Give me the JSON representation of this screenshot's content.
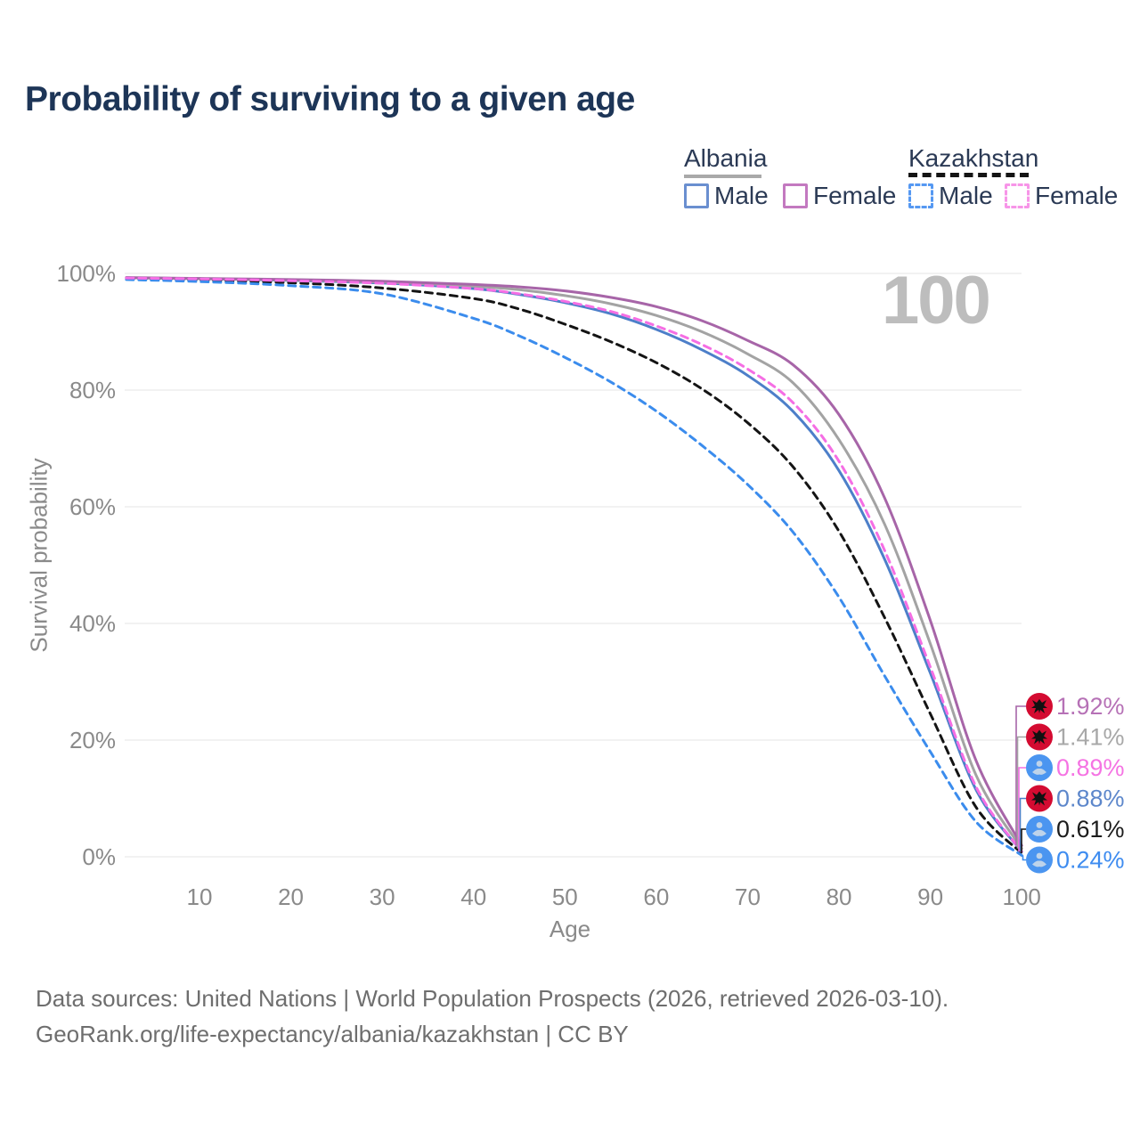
{
  "title": "Probability of surviving to a given age",
  "watermark": "100",
  "legend": {
    "groups": [
      {
        "name": "Albania",
        "line_style": "solid",
        "line_color": "#a9a9a9",
        "items": [
          {
            "label": "Male",
            "swatch_color": "#6a8fd0",
            "dashed": false
          },
          {
            "label": "Female",
            "swatch_color": "#c379c0",
            "dashed": false
          }
        ]
      },
      {
        "name": "Kazakhstan",
        "line_style": "dashed",
        "line_color": "#141414",
        "items": [
          {
            "label": "Male",
            "swatch_color": "#5598f2",
            "dashed": true
          },
          {
            "label": "Female",
            "swatch_color": "#f795e8",
            "dashed": true
          }
        ]
      }
    ]
  },
  "chart_data": {
    "type": "line",
    "title": "Probability of surviving to a given age",
    "xlabel": "Age",
    "ylabel": "Survival probability",
    "xlim": [
      0,
      100
    ],
    "ylim": [
      0,
      100
    ],
    "grid": true,
    "legend_position": "top-right",
    "x_ticks": [
      10,
      20,
      30,
      40,
      50,
      60,
      70,
      80,
      90,
      100
    ],
    "y_ticks": [
      {
        "value": 0,
        "label": "0%"
      },
      {
        "value": 20,
        "label": "20%"
      },
      {
        "value": 40,
        "label": "40%"
      },
      {
        "value": 60,
        "label": "60%"
      },
      {
        "value": 80,
        "label": "80%"
      },
      {
        "value": 100,
        "label": "100%"
      }
    ],
    "series": [
      {
        "name": "Albania Female",
        "country": "Albania",
        "sex": "Female",
        "color": "#a765a8",
        "dashed": false,
        "end_label": {
          "text": "1.92%",
          "color": "#b671b6",
          "flag": "albania-flag"
        },
        "points": [
          [
            2,
            99.3
          ],
          [
            10,
            99.15
          ],
          [
            20,
            98.95
          ],
          [
            30,
            98.65
          ],
          [
            40,
            98.1
          ],
          [
            45,
            97.7
          ],
          [
            50,
            97.0
          ],
          [
            55,
            95.9
          ],
          [
            60,
            94.3
          ],
          [
            65,
            91.9
          ],
          [
            70,
            88.5
          ],
          [
            75,
            84.3
          ],
          [
            80,
            75.8
          ],
          [
            85,
            61.5
          ],
          [
            90,
            40.5
          ],
          [
            95,
            16.5
          ],
          [
            100,
            1.92
          ]
        ]
      },
      {
        "name": "Albania",
        "country": "Albania",
        "sex": "Both",
        "color": "#a3a3a3",
        "dashed": false,
        "end_label": {
          "text": "1.41%",
          "color": "#a8a8a8",
          "flag": "albania-flag"
        },
        "points": [
          [
            2,
            99.25
          ],
          [
            10,
            99.1
          ],
          [
            20,
            98.85
          ],
          [
            30,
            98.5
          ],
          [
            40,
            97.8
          ],
          [
            45,
            97.2
          ],
          [
            50,
            96.2
          ],
          [
            55,
            94.8
          ],
          [
            60,
            92.8
          ],
          [
            65,
            90.0
          ],
          [
            70,
            86.2
          ],
          [
            75,
            81.2
          ],
          [
            80,
            71.5
          ],
          [
            85,
            57.0
          ],
          [
            90,
            36.5
          ],
          [
            95,
            14.0
          ],
          [
            100,
            1.41
          ]
        ]
      },
      {
        "name": "Kazakhstan Female",
        "country": "Kazakhstan",
        "sex": "Female",
        "color": "#f56ee4",
        "dashed": true,
        "end_label": {
          "text": "0.89%",
          "color": "#f573e3",
          "flag": "kazakhstan-flag"
        },
        "points": [
          [
            2,
            99.2
          ],
          [
            10,
            99.05
          ],
          [
            20,
            98.75
          ],
          [
            30,
            98.3
          ],
          [
            40,
            97.4
          ],
          [
            45,
            96.5
          ],
          [
            50,
            95.2
          ],
          [
            55,
            93.5
          ],
          [
            60,
            91.0
          ],
          [
            65,
            87.8
          ],
          [
            70,
            83.6
          ],
          [
            75,
            77.8
          ],
          [
            80,
            67.8
          ],
          [
            85,
            52.5
          ],
          [
            90,
            32.5
          ],
          [
            95,
            12.0
          ],
          [
            100,
            0.89
          ]
        ]
      },
      {
        "name": "Albania Male",
        "country": "Albania",
        "sex": "Male",
        "color": "#4d7fc9",
        "dashed": false,
        "end_label": {
          "text": "0.88%",
          "color": "#5d87cb",
          "flag": "albania-flag"
        },
        "points": [
          [
            2,
            99.25
          ],
          [
            10,
            99.1
          ],
          [
            20,
            98.8
          ],
          [
            30,
            98.35
          ],
          [
            40,
            97.4
          ],
          [
            45,
            96.4
          ],
          [
            50,
            95.0
          ],
          [
            55,
            93.1
          ],
          [
            60,
            90.4
          ],
          [
            65,
            86.9
          ],
          [
            70,
            82.5
          ],
          [
            75,
            76.3
          ],
          [
            80,
            66.2
          ],
          [
            85,
            51.0
          ],
          [
            90,
            31.5
          ],
          [
            95,
            11.5
          ],
          [
            100,
            0.88
          ]
        ]
      },
      {
        "name": "Kazakhstan",
        "country": "Kazakhstan",
        "sex": "Both",
        "color": "#141414",
        "dashed": true,
        "end_label": {
          "text": "0.61%",
          "color": "#1c1c1c",
          "flag": "kazakhstan-flag"
        },
        "points": [
          [
            2,
            99.1
          ],
          [
            10,
            98.85
          ],
          [
            20,
            98.4
          ],
          [
            30,
            97.5
          ],
          [
            40,
            95.7
          ],
          [
            45,
            93.9
          ],
          [
            50,
            91.3
          ],
          [
            55,
            88.3
          ],
          [
            60,
            84.7
          ],
          [
            65,
            80.2
          ],
          [
            70,
            74.4
          ],
          [
            75,
            66.8
          ],
          [
            80,
            55.8
          ],
          [
            85,
            41.0
          ],
          [
            90,
            24.5
          ],
          [
            95,
            8.5
          ],
          [
            100,
            0.61
          ]
        ]
      },
      {
        "name": "Kazakhstan Male",
        "country": "Kazakhstan",
        "sex": "Male",
        "color": "#3b8ced",
        "dashed": true,
        "end_label": {
          "text": "0.24%",
          "color": "#3e8cf0",
          "flag": "kazakhstan-flag"
        },
        "points": [
          [
            2,
            98.95
          ],
          [
            10,
            98.6
          ],
          [
            20,
            97.9
          ],
          [
            30,
            96.5
          ],
          [
            40,
            92.3
          ],
          [
            45,
            89.3
          ],
          [
            50,
            85.6
          ],
          [
            55,
            81.4
          ],
          [
            60,
            76.4
          ],
          [
            65,
            70.5
          ],
          [
            70,
            63.8
          ],
          [
            75,
            55.6
          ],
          [
            80,
            44.5
          ],
          [
            85,
            31.0
          ],
          [
            90,
            18.0
          ],
          [
            95,
            6.0
          ],
          [
            100,
            0.24
          ]
        ]
      }
    ],
    "flag_colors": {
      "albania_circle": "#d40b31",
      "albania_emblem": "#111111",
      "kazakhstan_circle": "#4b95f0",
      "kazakhstan_emblem": "#bed3ea"
    }
  },
  "footer": {
    "line1": "Data sources: United Nations | World Population Prospects (2026, retrieved 2026-03-10).",
    "line2": "GeoRank.org/life-expectancy/albania/kazakhstan | CC BY"
  }
}
